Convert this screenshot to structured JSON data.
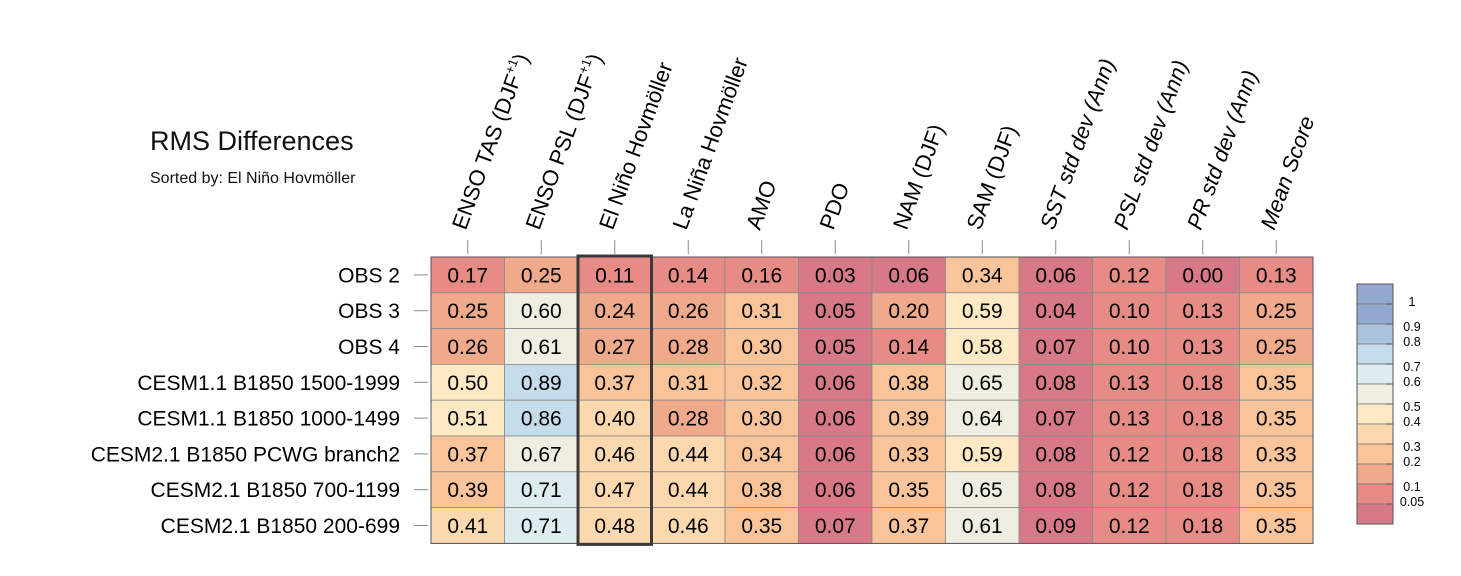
{
  "title": "RMS Differences",
  "subtitle": "Sorted by: El Niño Hovmöller",
  "chart_data": {
    "type": "heatmap",
    "title": "RMS Differences",
    "subtitle": "Sorted by: El Niño Hovmöller",
    "columns": [
      "ENSO TAS (DJF+1)",
      "ENSO PSL (DJF+1)",
      "El Niño Hovmöller",
      "La Niña Hovmöller",
      "AMO",
      "PDO",
      "NAM (DJF)",
      "SAM (DJF)",
      "SST std dev (Ann)",
      "PSL std dev (Ann)",
      "PR std dev (Ann)",
      "Mean Score"
    ],
    "columns_sup": [
      "+1",
      "+1",
      "",
      "",
      "",
      "",
      "",
      "",
      "",
      "",
      "",
      ""
    ],
    "columns_italic_from": 8,
    "rows": [
      "OBS 2",
      "OBS 3",
      "OBS 4",
      "CESM1.1 B1850 1500-1999",
      "CESM1.1 B1850 1000-1499",
      "CESM2.1 B1850 PCWG branch2",
      "CESM2.1 B1850 700-1199",
      "CESM2.1 B1850 200-699"
    ],
    "values": [
      [
        "0.17",
        "0.25",
        "0.11",
        "0.14",
        "0.16",
        "0.03",
        "0.06",
        "0.34",
        "0.06",
        "0.12",
        "0.00",
        "0.13"
      ],
      [
        "0.25",
        "0.60",
        "0.24",
        "0.26",
        "0.31",
        "0.05",
        "0.20",
        "0.59",
        "0.04",
        "0.10",
        "0.13",
        "0.25"
      ],
      [
        "0.26",
        "0.61",
        "0.27",
        "0.28",
        "0.30",
        "0.05",
        "0.14",
        "0.58",
        "0.07",
        "0.10",
        "0.13",
        "0.25"
      ],
      [
        "0.50",
        "0.89",
        "0.37",
        "0.31",
        "0.32",
        "0.06",
        "0.38",
        "0.65",
        "0.08",
        "0.13",
        "0.18",
        "0.35"
      ],
      [
        "0.51",
        "0.86",
        "0.40",
        "0.28",
        "0.30",
        "0.06",
        "0.39",
        "0.64",
        "0.07",
        "0.13",
        "0.18",
        "0.35"
      ],
      [
        "0.37",
        "0.67",
        "0.46",
        "0.44",
        "0.34",
        "0.06",
        "0.33",
        "0.59",
        "0.08",
        "0.12",
        "0.18",
        "0.33"
      ],
      [
        "0.39",
        "0.71",
        "0.47",
        "0.44",
        "0.38",
        "0.06",
        "0.35",
        "0.65",
        "0.08",
        "0.12",
        "0.18",
        "0.35"
      ],
      [
        "0.41",
        "0.71",
        "0.48",
        "0.46",
        "0.35",
        "0.07",
        "0.37",
        "0.61",
        "0.09",
        "0.12",
        "0.18",
        "0.35"
      ]
    ],
    "highlighted_column": "El Niño Hovmöller",
    "colorbar": {
      "levels": [
        "1",
        "0.9",
        "0.8",
        "0.7",
        "0.6",
        "0.5",
        "0.4",
        "0.3",
        "0.2",
        "0.1",
        "0.05"
      ],
      "colors": [
        "#94a9cf",
        "#abc4dd",
        "#c5dcea",
        "#dcecef",
        "#eeeee3",
        "#fde9c4",
        "#fcd8ae",
        "#f9c49a",
        "#efa98b",
        "#e68b86",
        "#d87988"
      ]
    },
    "grid": true,
    "legend_position": "right"
  }
}
